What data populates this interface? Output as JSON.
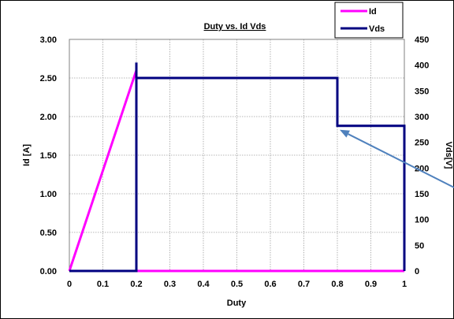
{
  "chart_data": {
    "type": "line",
    "title": "Duty vs. Id Vds",
    "xlabel": "Duty",
    "ylabel_left": "Id [A]",
    "ylabel_right": "Vds[V]",
    "xlim": [
      0,
      1
    ],
    "ylim_left": [
      0,
      3
    ],
    "ylim_right": [
      0,
      450
    ],
    "x_ticks": [
      "0",
      "0.1",
      "0.2",
      "0.3",
      "0.4",
      "0.5",
      "0.6",
      "0.7",
      "0.8",
      "0.9",
      "1"
    ],
    "y_left_ticks": [
      "0.00",
      "0.50",
      "1.00",
      "1.50",
      "2.00",
      "2.50",
      "3.00"
    ],
    "y_right_ticks": [
      "0",
      "50",
      "100",
      "150",
      "200",
      "250",
      "300",
      "350",
      "400",
      "450"
    ],
    "grid": true,
    "legend_position": "top-right",
    "series": [
      {
        "name": "Id",
        "axis": "left",
        "color": "#ff00ff",
        "points": [
          [
            0,
            0
          ],
          [
            0.2,
            2.6
          ],
          [
            0.2,
            0
          ],
          [
            1,
            0
          ]
        ]
      },
      {
        "name": "Vds",
        "axis": "right",
        "color": "#000080",
        "points": [
          [
            0,
            0
          ],
          [
            0.2,
            0
          ],
          [
            0.2,
            405
          ],
          [
            0.2,
            375
          ],
          [
            0.8,
            375
          ],
          [
            0.8,
            282
          ],
          [
            1,
            282
          ],
          [
            1,
            0
          ]
        ]
      }
    ],
    "annotation": {
      "type": "arrow",
      "color": "#4f81bd",
      "points_to": [
        0.8,
        282
      ]
    }
  }
}
